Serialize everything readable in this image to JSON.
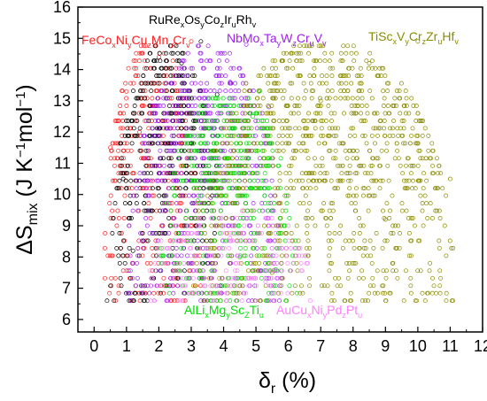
{
  "chart_data": {
    "type": "scatter",
    "title": "",
    "xlabel": "δr (%)",
    "ylabel": "ΔSmix (J K⁻¹mol⁻¹)",
    "xlim": [
      -0.5,
      12
    ],
    "ylim": [
      5.6,
      16
    ],
    "x_ticks": [
      0,
      1,
      2,
      3,
      4,
      5,
      6,
      7,
      8,
      9,
      10,
      11,
      12
    ],
    "y_ticks": [
      6,
      7,
      8,
      9,
      10,
      11,
      12,
      13,
      14,
      15,
      16
    ],
    "grid": false,
    "legend": "none",
    "marker": "open-circle",
    "series": [
      {
        "name": "FeCoxNiyCuzMnuCrv",
        "color": "#ff2020",
        "label_parts": [
          [
            "FeCo",
            ""
          ],
          [
            "x",
            "sub"
          ],
          [
            "Ni",
            ""
          ],
          [
            "y",
            "sub"
          ],
          [
            "Cu",
            ""
          ],
          [
            "z",
            "sub"
          ],
          [
            "Mn",
            ""
          ],
          [
            "u",
            "sub"
          ],
          [
            "Cr",
            ""
          ],
          [
            "v",
            "sub"
          ]
        ],
        "x_range": [
          0.3,
          3.3
        ],
        "y_max": 15.0,
        "points": [
          [
            0.5,
            11.5
          ],
          [
            1.0,
            13.3
          ],
          [
            1.4,
            12.0
          ],
          [
            2.0,
            14.4
          ],
          [
            2.5,
            14.8
          ],
          [
            3.0,
            14.9
          ],
          [
            0.7,
            9.0
          ],
          [
            1.5,
            8.5
          ]
        ]
      },
      {
        "name": "RuRexOsyCozIruRhv",
        "color": "#000000",
        "label_parts": [
          [
            "RuRe",
            ""
          ],
          [
            "x",
            "sub"
          ],
          [
            "Os",
            ""
          ],
          [
            "y",
            "sub"
          ],
          [
            "Co",
            ""
          ],
          [
            "z",
            "sub"
          ],
          [
            "Ir",
            ""
          ],
          [
            "u",
            "sub"
          ],
          [
            "Rh",
            ""
          ],
          [
            "v",
            "sub"
          ]
        ],
        "x_range": [
          0.5,
          4.0
        ],
        "y_max": 14.9,
        "points": [
          [
            0.9,
            10.5
          ],
          [
            2.7,
            14.2
          ],
          [
            3.3,
            14.9
          ],
          [
            3.8,
            13.2
          ],
          [
            1.2,
            8.2
          ],
          [
            0.4,
            6.6
          ]
        ]
      },
      {
        "name": "NbMoxTayWzCruVv",
        "color": "#a020f0",
        "label_parts": [
          [
            "NbMo",
            ""
          ],
          [
            "x",
            "sub"
          ],
          [
            "Ta",
            ""
          ],
          [
            "y",
            "sub"
          ],
          [
            "W",
            ""
          ],
          [
            "z",
            "sub"
          ],
          [
            "Cr",
            ""
          ],
          [
            "u",
            "sub"
          ],
          [
            "V",
            ""
          ],
          [
            "v",
            "sub"
          ]
        ],
        "x_range": [
          1.0,
          5.9
        ],
        "y_max": 14.8,
        "points": [
          [
            4.7,
            14.8
          ],
          [
            4.2,
            13.6
          ],
          [
            5.4,
            12.8
          ],
          [
            2.2,
            9.5
          ],
          [
            3.6,
            9.9
          ]
        ]
      },
      {
        "name": "TiScxVyCrzZruHfv",
        "color": "#8b8b00",
        "label_parts": [
          [
            "TiSc",
            ""
          ],
          [
            "x",
            "sub"
          ],
          [
            "V",
            ""
          ],
          [
            "y",
            "sub"
          ],
          [
            "Cr",
            ""
          ],
          [
            "z",
            "sub"
          ],
          [
            "Zr",
            ""
          ],
          [
            "u",
            "sub"
          ],
          [
            "Hf",
            ""
          ],
          [
            "v",
            "sub"
          ]
        ],
        "x_range": [
          3.0,
          11.2
        ],
        "y_max": 14.9,
        "points": [
          [
            10.0,
            14.9
          ],
          [
            8.5,
            14.2
          ],
          [
            7.0,
            13.0
          ],
          [
            11.0,
            10.5
          ],
          [
            5.5,
            7.5
          ],
          [
            9.0,
            9.2
          ]
        ]
      },
      {
        "name": "AlLixMgyScZTiu",
        "color": "#00dd00",
        "label_parts": [
          [
            "AlLi",
            ""
          ],
          [
            "x",
            "sub"
          ],
          [
            "Mg",
            ""
          ],
          [
            "y",
            "sub"
          ],
          [
            "Sc",
            ""
          ],
          [
            "Z",
            "sub"
          ],
          [
            "Ti",
            ""
          ],
          [
            "u",
            "sub"
          ]
        ],
        "x_range": [
          2.0,
          6.3
        ],
        "y_max": 13.3,
        "points": [
          [
            5.1,
            13.3
          ],
          [
            4.9,
            12.5
          ],
          [
            3.2,
            9.8
          ],
          [
            4.5,
            8.0
          ],
          [
            5.6,
            7.6
          ]
        ]
      },
      {
        "name": "AuCuxNiyPdzPtu",
        "color": "#ff80ff",
        "label_parts": [
          [
            "AuCu",
            ""
          ],
          [
            "x",
            "sub"
          ],
          [
            "Ni",
            ""
          ],
          [
            "y",
            "sub"
          ],
          [
            "Pd",
            ""
          ],
          [
            "z",
            "sub"
          ],
          [
            "Pt",
            ""
          ],
          [
            "u",
            "sub"
          ]
        ],
        "x_range": [
          1.5,
          6.8
        ],
        "y_max": 9.6,
        "points": [
          [
            6.0,
            9.0
          ],
          [
            4.2,
            8.6
          ],
          [
            2.3,
            7.8
          ],
          [
            5.3,
            7.2
          ]
        ]
      }
    ]
  }
}
